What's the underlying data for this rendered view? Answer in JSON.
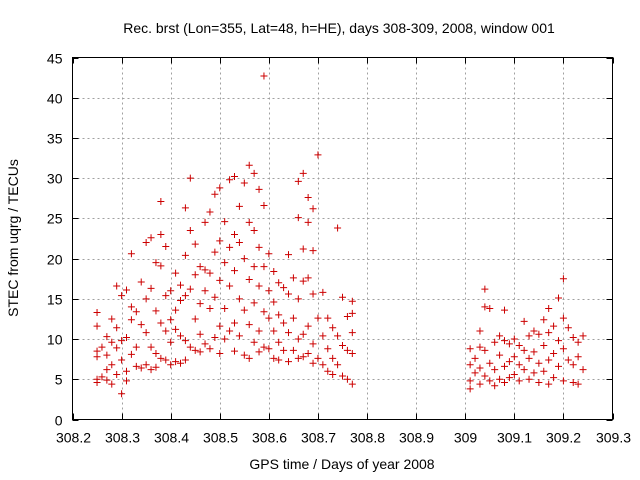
{
  "chart_data": {
    "type": "scatter",
    "title": "Rec. brst (Lon=355, Lat=48, h=HE), days 308-309, 2008, window 001",
    "xlabel": "GPS time / Days of year 2008",
    "ylabel": "STEC from uqrg / TECUs",
    "xlim": [
      308.2,
      309.3
    ],
    "ylim": [
      0,
      45
    ],
    "xticks": [
      "308.2",
      "308.3",
      "308.4",
      "308.5",
      "308.6",
      "308.7",
      "308.8",
      "308.9",
      "309",
      "309.1",
      "309.2",
      "309.3"
    ],
    "xtick_values": [
      308.2,
      308.3,
      308.4,
      308.5,
      308.6,
      308.7,
      308.8,
      308.9,
      309.0,
      309.1,
      309.2,
      309.3
    ],
    "yticks": [
      "0",
      "5",
      "10",
      "15",
      "20",
      "25",
      "30",
      "35",
      "40",
      "45"
    ],
    "ytick_values": [
      0,
      5,
      10,
      15,
      20,
      25,
      30,
      35,
      40,
      45
    ],
    "grid": true,
    "marker": "plus",
    "color": "#cc0000",
    "points": [
      [
        308.25,
        13.3
      ],
      [
        308.25,
        11.6
      ],
      [
        308.25,
        8.5
      ],
      [
        308.25,
        7.8
      ],
      [
        308.25,
        5.0
      ],
      [
        308.25,
        4.6
      ],
      [
        308.26,
        9.0
      ],
      [
        308.26,
        5.3
      ],
      [
        308.27,
        10.3
      ],
      [
        308.27,
        8.0
      ],
      [
        308.27,
        6.2
      ],
      [
        308.27,
        4.9
      ],
      [
        308.28,
        12.5
      ],
      [
        308.28,
        9.6
      ],
      [
        308.28,
        6.8
      ],
      [
        308.28,
        4.4
      ],
      [
        308.29,
        16.6
      ],
      [
        308.29,
        11.4
      ],
      [
        308.29,
        8.9
      ],
      [
        308.29,
        5.6
      ],
      [
        308.3,
        15.4
      ],
      [
        308.3,
        9.8
      ],
      [
        308.3,
        7.4
      ],
      [
        308.3,
        3.2
      ],
      [
        308.31,
        16.1
      ],
      [
        308.31,
        10.2
      ],
      [
        308.31,
        6.0
      ],
      [
        308.31,
        4.8
      ],
      [
        308.32,
        20.6
      ],
      [
        308.32,
        14.0
      ],
      [
        308.32,
        12.4
      ],
      [
        308.32,
        8.1
      ],
      [
        308.33,
        13.4
      ],
      [
        308.33,
        9.0
      ],
      [
        308.33,
        6.6
      ],
      [
        308.34,
        17.1
      ],
      [
        308.34,
        11.8
      ],
      [
        308.34,
        6.4
      ],
      [
        308.35,
        22.0
      ],
      [
        308.35,
        15.0
      ],
      [
        308.35,
        10.8
      ],
      [
        308.35,
        6.8
      ],
      [
        308.36,
        22.6
      ],
      [
        308.36,
        16.3
      ],
      [
        308.36,
        9.0
      ],
      [
        308.36,
        6.2
      ],
      [
        308.37,
        19.5
      ],
      [
        308.37,
        13.5
      ],
      [
        308.37,
        8.2
      ],
      [
        308.37,
        6.5
      ],
      [
        308.38,
        27.1
      ],
      [
        308.38,
        23.0
      ],
      [
        308.38,
        19.1
      ],
      [
        308.38,
        12.0
      ],
      [
        308.38,
        7.6
      ],
      [
        308.39,
        21.5
      ],
      [
        308.39,
        15.4
      ],
      [
        308.39,
        11.0
      ],
      [
        308.39,
        7.4
      ],
      [
        308.4,
        16.0
      ],
      [
        308.4,
        12.4
      ],
      [
        308.4,
        9.6
      ],
      [
        308.4,
        6.8
      ],
      [
        308.41,
        18.2
      ],
      [
        308.41,
        13.6
      ],
      [
        308.41,
        11.2
      ],
      [
        308.41,
        7.2
      ],
      [
        308.42,
        16.7
      ],
      [
        308.42,
        14.8
      ],
      [
        308.42,
        10.4
      ],
      [
        308.42,
        7.0
      ],
      [
        308.43,
        26.3
      ],
      [
        308.43,
        20.4
      ],
      [
        308.43,
        15.4
      ],
      [
        308.43,
        9.8
      ],
      [
        308.43,
        7.4
      ],
      [
        308.44,
        30.0
      ],
      [
        308.44,
        23.5
      ],
      [
        308.44,
        16.2
      ],
      [
        308.44,
        9.0
      ],
      [
        308.45,
        21.8
      ],
      [
        308.45,
        18.0
      ],
      [
        308.45,
        12.5
      ],
      [
        308.45,
        8.6
      ],
      [
        308.46,
        19.0
      ],
      [
        308.46,
        14.4
      ],
      [
        308.46,
        10.6
      ],
      [
        308.46,
        8.4
      ],
      [
        308.47,
        24.5
      ],
      [
        308.47,
        18.6
      ],
      [
        308.47,
        16.0
      ],
      [
        308.47,
        9.4
      ],
      [
        308.48,
        25.8
      ],
      [
        308.48,
        18.2
      ],
      [
        308.48,
        13.8
      ],
      [
        308.48,
        8.8
      ],
      [
        308.49,
        28.0
      ],
      [
        308.49,
        20.8
      ],
      [
        308.49,
        15.2
      ],
      [
        308.49,
        10.2
      ],
      [
        308.5,
        28.8
      ],
      [
        308.5,
        22.2
      ],
      [
        308.5,
        17.3
      ],
      [
        308.5,
        11.6
      ],
      [
        308.5,
        8.2
      ],
      [
        308.51,
        24.6
      ],
      [
        308.51,
        19.5
      ],
      [
        308.51,
        13.8
      ],
      [
        308.51,
        10.0
      ],
      [
        308.52,
        29.8
      ],
      [
        308.52,
        21.4
      ],
      [
        308.52,
        16.6
      ],
      [
        308.52,
        11.0
      ],
      [
        308.53,
        30.2
      ],
      [
        308.53,
        23.0
      ],
      [
        308.53,
        18.5
      ],
      [
        308.53,
        12.0
      ],
      [
        308.53,
        8.5
      ],
      [
        308.54,
        26.5
      ],
      [
        308.54,
        22.0
      ],
      [
        308.54,
        15.0
      ],
      [
        308.54,
        10.4
      ],
      [
        308.55,
        29.4
      ],
      [
        308.55,
        20.0
      ],
      [
        308.55,
        13.6
      ],
      [
        308.55,
        8.0
      ],
      [
        308.56,
        31.6
      ],
      [
        308.56,
        24.5
      ],
      [
        308.56,
        17.4
      ],
      [
        308.56,
        11.8
      ],
      [
        308.56,
        7.6
      ],
      [
        308.57,
        30.6
      ],
      [
        308.57,
        23.5
      ],
      [
        308.57,
        19.0
      ],
      [
        308.57,
        14.5
      ],
      [
        308.57,
        9.6
      ],
      [
        308.58,
        28.6
      ],
      [
        308.58,
        21.4
      ],
      [
        308.58,
        16.6
      ],
      [
        308.58,
        11.0
      ],
      [
        308.58,
        8.4
      ],
      [
        308.59,
        42.7
      ],
      [
        308.59,
        26.6
      ],
      [
        308.59,
        19.0
      ],
      [
        308.59,
        13.4
      ],
      [
        308.59,
        9.0
      ],
      [
        308.6,
        20.6
      ],
      [
        308.6,
        16.0
      ],
      [
        308.6,
        12.6
      ],
      [
        308.6,
        8.8
      ],
      [
        308.61,
        18.4
      ],
      [
        308.61,
        14.6
      ],
      [
        308.61,
        11.0
      ],
      [
        308.61,
        7.6
      ],
      [
        308.62,
        17.0
      ],
      [
        308.62,
        13.0
      ],
      [
        308.62,
        9.6
      ],
      [
        308.62,
        7.4
      ],
      [
        308.63,
        16.4
      ],
      [
        308.63,
        12.0
      ],
      [
        308.63,
        8.6
      ],
      [
        308.64,
        20.5
      ],
      [
        308.64,
        15.6
      ],
      [
        308.64,
        10.8
      ],
      [
        308.64,
        7.2
      ],
      [
        308.65,
        17.6
      ],
      [
        308.65,
        12.6
      ],
      [
        308.65,
        8.6
      ],
      [
        308.66,
        29.6
      ],
      [
        308.66,
        25.1
      ],
      [
        308.66,
        15.0
      ],
      [
        308.66,
        10.0
      ],
      [
        308.66,
        7.6
      ],
      [
        308.67,
        30.6
      ],
      [
        308.67,
        21.2
      ],
      [
        308.67,
        17.2
      ],
      [
        308.67,
        10.6
      ],
      [
        308.67,
        7.8
      ],
      [
        308.68,
        27.6
      ],
      [
        308.68,
        24.5
      ],
      [
        308.68,
        17.6
      ],
      [
        308.68,
        11.6
      ],
      [
        308.68,
        8.2
      ],
      [
        308.69,
        26.2
      ],
      [
        308.69,
        21.0
      ],
      [
        308.69,
        15.6
      ],
      [
        308.69,
        9.4
      ],
      [
        308.69,
        7.0
      ],
      [
        308.7,
        32.9
      ],
      [
        308.7,
        12.6
      ],
      [
        308.7,
        7.6
      ],
      [
        308.71,
        15.8
      ],
      [
        308.71,
        10.4
      ],
      [
        308.71,
        6.8
      ],
      [
        308.72,
        12.6
      ],
      [
        308.72,
        8.8
      ],
      [
        308.72,
        6.0
      ],
      [
        308.73,
        11.4
      ],
      [
        308.73,
        7.6
      ],
      [
        308.73,
        5.6
      ],
      [
        308.74,
        23.8
      ],
      [
        308.74,
        10.4
      ],
      [
        308.74,
        6.8
      ],
      [
        308.75,
        15.2
      ],
      [
        308.75,
        9.2
      ],
      [
        308.75,
        5.4
      ],
      [
        308.76,
        12.8
      ],
      [
        308.76,
        8.6
      ],
      [
        308.76,
        5.0
      ],
      [
        308.77,
        14.7
      ],
      [
        308.77,
        13.2
      ],
      [
        308.77,
        10.8
      ],
      [
        308.77,
        8.2
      ],
      [
        308.77,
        4.4
      ],
      [
        309.01,
        8.8
      ],
      [
        309.01,
        6.8
      ],
      [
        309.01,
        4.8
      ],
      [
        309.01,
        3.8
      ],
      [
        309.02,
        7.6
      ],
      [
        309.02,
        5.8
      ],
      [
        309.03,
        11.0
      ],
      [
        309.03,
        9.0
      ],
      [
        309.03,
        6.4
      ],
      [
        309.03,
        4.4
      ],
      [
        309.04,
        16.2
      ],
      [
        309.04,
        14.0
      ],
      [
        309.04,
        8.6
      ],
      [
        309.04,
        5.4
      ],
      [
        309.05,
        13.8
      ],
      [
        309.05,
        7.0
      ],
      [
        309.05,
        4.8
      ],
      [
        309.06,
        9.6
      ],
      [
        309.06,
        6.2
      ],
      [
        309.06,
        4.2
      ],
      [
        309.07,
        10.4
      ],
      [
        309.07,
        8.0
      ],
      [
        309.07,
        5.0
      ],
      [
        309.08,
        13.6
      ],
      [
        309.08,
        9.8
      ],
      [
        309.08,
        6.6
      ],
      [
        309.08,
        4.6
      ],
      [
        309.09,
        9.4
      ],
      [
        309.09,
        7.2
      ],
      [
        309.09,
        5.2
      ],
      [
        309.1,
        10.0
      ],
      [
        309.1,
        7.8
      ],
      [
        309.1,
        5.6
      ],
      [
        309.11,
        9.2
      ],
      [
        309.11,
        6.8
      ],
      [
        309.11,
        4.8
      ],
      [
        309.12,
        12.2
      ],
      [
        309.12,
        8.6
      ],
      [
        309.12,
        6.2
      ],
      [
        309.13,
        10.4
      ],
      [
        309.13,
        7.6
      ],
      [
        309.13,
        5.0
      ],
      [
        309.14,
        11.0
      ],
      [
        309.14,
        8.4
      ],
      [
        309.14,
        5.8
      ],
      [
        309.15,
        10.6
      ],
      [
        309.15,
        7.0
      ],
      [
        309.15,
        4.6
      ],
      [
        309.16,
        12.4
      ],
      [
        309.16,
        9.2
      ],
      [
        309.16,
        6.0
      ],
      [
        309.17,
        13.8
      ],
      [
        309.17,
        10.8
      ],
      [
        309.17,
        7.4
      ],
      [
        309.17,
        4.4
      ],
      [
        309.18,
        11.6
      ],
      [
        309.18,
        8.2
      ],
      [
        309.18,
        5.2
      ],
      [
        309.19,
        15.1
      ],
      [
        309.19,
        9.8
      ],
      [
        309.19,
        6.6
      ],
      [
        309.2,
        17.5
      ],
      [
        309.2,
        12.6
      ],
      [
        309.2,
        8.8
      ],
      [
        309.2,
        4.8
      ],
      [
        309.21,
        11.4
      ],
      [
        309.21,
        7.4
      ],
      [
        309.22,
        10.2
      ],
      [
        309.22,
        6.8
      ],
      [
        309.22,
        4.6
      ],
      [
        309.23,
        9.6
      ],
      [
        309.23,
        7.8
      ],
      [
        309.23,
        4.4
      ],
      [
        309.24,
        10.4
      ],
      [
        309.24,
        6.2
      ]
    ]
  }
}
